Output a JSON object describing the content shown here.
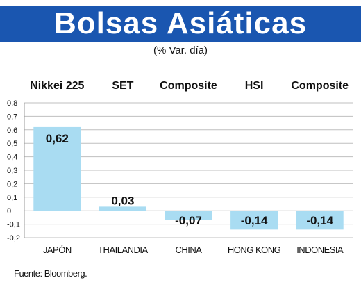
{
  "header": {
    "title": "Bolsas Asiáticas",
    "subtitle": "(% Var. día)"
  },
  "source": "Fuente: Bloomberg.",
  "colors": {
    "banner": "#1a56b0",
    "bar": "#a9dcf2",
    "grid": "#bfbfbf"
  },
  "chart_data": {
    "type": "bar",
    "title": "Bolsas Asiáticas",
    "subtitle": "(% Var. día)",
    "index_labels": [
      "Nikkei 225",
      "SET",
      "Composite",
      "HSI",
      "Composite"
    ],
    "categories": [
      "JAPÓN",
      "THAILANDIA",
      "CHINA",
      "HONG KONG",
      "INDONESIA"
    ],
    "values": [
      0.62,
      0.03,
      -0.07,
      -0.14,
      -0.14
    ],
    "value_labels": [
      "0,62",
      "0,03",
      "-0,07",
      "-0,14",
      "-0,14"
    ],
    "ylim": [
      -0.2,
      0.8
    ],
    "yticks": [
      0.8,
      0.7,
      0.6,
      0.5,
      0.4,
      0.3,
      0.2,
      0.1,
      0,
      -0.1,
      -0.2
    ],
    "ytick_labels": [
      "0,8",
      "0,7",
      "0,6",
      "0,5",
      "0,4",
      "0,3",
      "0,2",
      "0,1",
      "0",
      "-0,1",
      "-0,2"
    ],
    "grid": true,
    "legend": "none"
  }
}
